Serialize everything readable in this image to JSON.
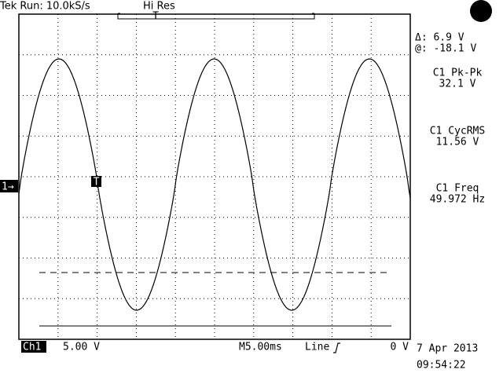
{
  "header": {
    "status": "Tek Run: 10.0kS/s",
    "mode": "Hi Res"
  },
  "measurements": {
    "delta": "Δ: 6.9 V",
    "at": "@: -18.1 V",
    "items": [
      {
        "label": "C1 Pk-Pk",
        "value": "32.1 V"
      },
      {
        "label": "C1 CycRMS",
        "value": "11.56 V"
      },
      {
        "label": "C1 Freq",
        "value": "49.972 Hz"
      }
    ]
  },
  "markers": {
    "channel": "1→",
    "trigger": "T"
  },
  "footer": {
    "channel": "Ch1",
    "scale": "5.00 V",
    "timebase": "M5.00ms",
    "trigger_source": "Line",
    "trigger_level": "0 V",
    "date": "7 Apr 2013",
    "time": "09:54:22"
  }
}
